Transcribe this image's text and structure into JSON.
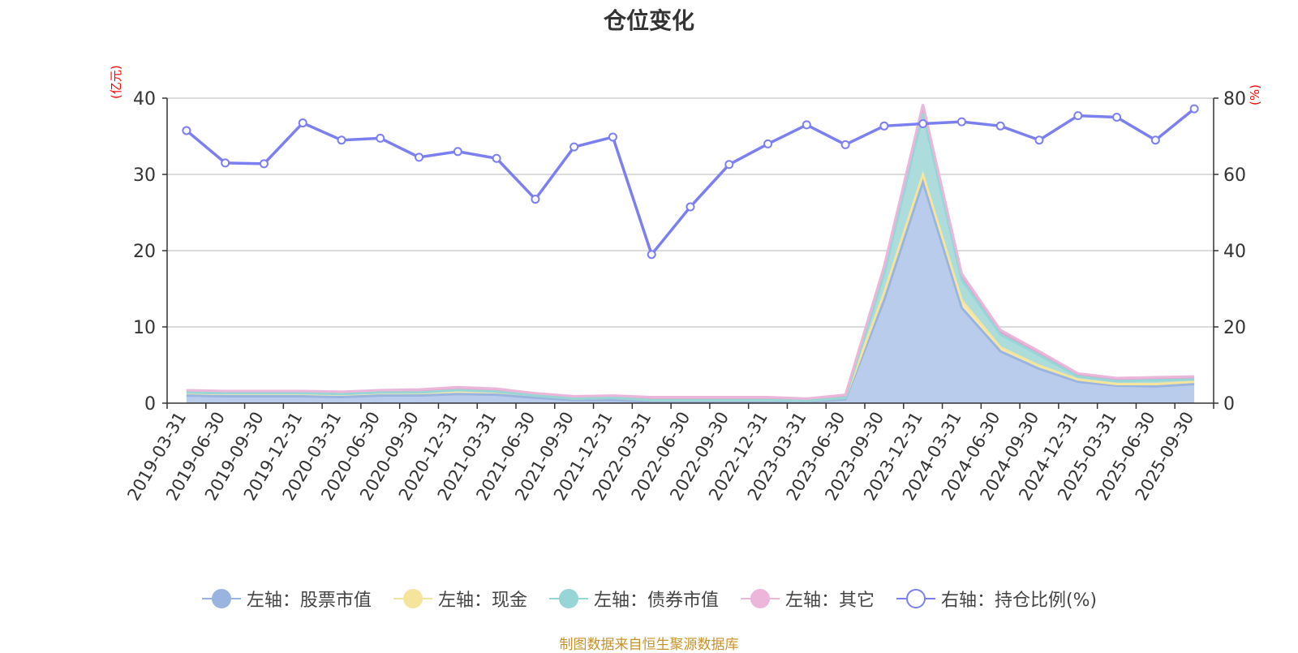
{
  "title": "仓位变化",
  "left_unit": "(亿元)",
  "right_unit": "(%)",
  "source": "制图数据来自恒生聚源数据库",
  "chart_data": {
    "type": "area",
    "categories": [
      "2019-03-31",
      "2019-06-30",
      "2019-09-30",
      "2019-12-31",
      "2020-03-31",
      "2020-06-30",
      "2020-09-30",
      "2020-12-31",
      "2021-03-31",
      "2021-06-30",
      "2021-09-30",
      "2021-12-31",
      "2022-03-31",
      "2022-06-30",
      "2022-09-30",
      "2022-12-31",
      "2023-03-31",
      "2023-06-30",
      "2023-09-30",
      "2023-12-31",
      "2024-03-31",
      "2024-06-30",
      "2024-09-30",
      "2024-12-31",
      "2025-03-31",
      "2025-06-30",
      "2025-09-30"
    ],
    "y_left": {
      "min": 0,
      "max": 40,
      "ticks": [
        0,
        10,
        20,
        30,
        40
      ]
    },
    "y_right": {
      "min": 0,
      "max": 80,
      "ticks": [
        0,
        20,
        40,
        60,
        80
      ]
    },
    "stacked_series": [
      {
        "name": "左轴：股票市值",
        "axis": "left",
        "color": "#9ab4e0",
        "fill": "#b9cceb",
        "values": [
          1.0,
          0.9,
          0.9,
          0.9,
          0.8,
          1.0,
          1.0,
          1.2,
          1.1,
          0.7,
          0.4,
          0.4,
          0.2,
          0.2,
          0.2,
          0.2,
          0.2,
          0.5,
          13.5,
          29.0,
          12.5,
          6.8,
          4.5,
          2.8,
          2.3,
          2.2,
          2.5
        ]
      },
      {
        "name": "左轴：现金",
        "axis": "left",
        "color": "#f5e49b",
        "fill": "#f7eab2",
        "values": [
          0.4,
          0.4,
          0.4,
          0.4,
          0.4,
          0.4,
          0.4,
          0.5,
          0.4,
          0.3,
          0.2,
          0.3,
          0.2,
          0.2,
          0.2,
          0.2,
          0.1,
          0.2,
          1.0,
          1.0,
          1.0,
          0.5,
          0.4,
          0.3,
          0.2,
          0.3,
          0.3
        ]
      },
      {
        "name": "左轴：债券市值",
        "axis": "left",
        "color": "#97d5d6",
        "fill": "#acdcdc",
        "values": [
          0.0,
          0.0,
          0.0,
          0.0,
          0.0,
          0.0,
          0.0,
          0.0,
          0.0,
          0.0,
          0.0,
          0.0,
          0.0,
          0.0,
          0.0,
          0.0,
          0.0,
          0.0,
          2.5,
          8.0,
          2.7,
          1.7,
          1.4,
          0.4,
          0.4,
          0.5,
          0.3
        ]
      },
      {
        "name": "左轴：其它",
        "axis": "left",
        "color": "#ebb6da",
        "fill": "#dea6cf",
        "values": [
          0.3,
          0.3,
          0.3,
          0.3,
          0.3,
          0.3,
          0.4,
          0.4,
          0.4,
          0.3,
          0.3,
          0.3,
          0.4,
          0.4,
          0.4,
          0.4,
          0.3,
          0.4,
          1.0,
          1.2,
          0.8,
          0.6,
          0.5,
          0.4,
          0.4,
          0.4,
          0.4
        ]
      }
    ],
    "line_series": {
      "name": "右轴：持仓比例(%)",
      "axis": "right",
      "color": "#7b7ff0",
      "values": [
        71.5,
        63.0,
        62.8,
        73.5,
        69.0,
        69.5,
        64.5,
        66.0,
        64.2,
        53.5,
        67.2,
        69.8,
        39.0,
        51.5,
        62.6,
        68.0,
        73.0,
        67.8,
        72.7,
        73.3,
        73.8,
        72.7,
        69.0,
        75.4,
        75.0,
        69.0,
        77.2
      ]
    }
  },
  "legend": [
    {
      "label": "左轴：股票市值",
      "color": "#9ab4e0",
      "hollow": false
    },
    {
      "label": "左轴：现金",
      "color": "#f5e49b",
      "hollow": false
    },
    {
      "label": "左轴：债券市值",
      "color": "#97d5d6",
      "hollow": false
    },
    {
      "label": "左轴：其它",
      "color": "#ebb6da",
      "hollow": false
    },
    {
      "label": "右轴：持仓比例(%)",
      "color": "#7b7ff0",
      "hollow": true
    }
  ]
}
